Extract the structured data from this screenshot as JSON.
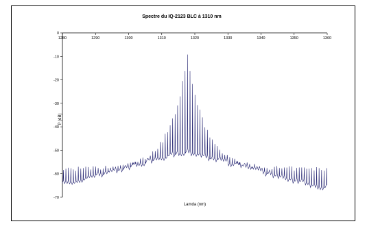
{
  "chart_data": {
    "type": "line",
    "title": "Spectre du IQ-2123 BLC à 1310 nm",
    "xlabel": "Lamda (nm)",
    "ylabel": "P (dB)",
    "xlim": [
      1280,
      1360
    ],
    "ylim": [
      -70,
      0
    ],
    "x_ticks": [
      1280,
      1290,
      1300,
      1310,
      1320,
      1330,
      1340,
      1350,
      1360
    ],
    "y_ticks": [
      0,
      -10,
      -20,
      -30,
      -40,
      -50,
      -60,
      -70
    ],
    "x_axis_position": "top",
    "grid": false,
    "legend": "none",
    "series_color": "#1f1f6e",
    "series": [
      {
        "description_points": {
          "mode_spacing_nm": 0.75,
          "peak_wavelength_nm": 1317.8,
          "peak_power_db": -10,
          "floor_at_center_db": -50,
          "floor_at_edges_db": -65,
          "peak_at_edges_db": -58
        }
      }
    ]
  }
}
